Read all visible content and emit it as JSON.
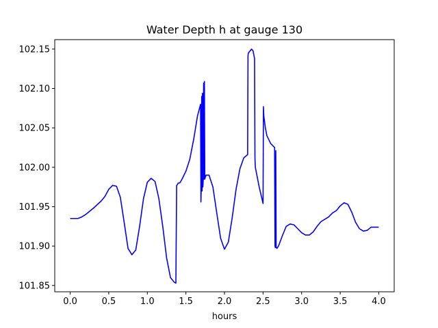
{
  "chart_data": {
    "type": "line",
    "title": "Water Depth h at gauge 130",
    "xlabel": "hours",
    "ylabel": "",
    "xlim": [
      -0.2,
      4.2
    ],
    "ylim": [
      101.842,
      102.162
    ],
    "xticks": [
      0.0,
      0.5,
      1.0,
      1.5,
      2.0,
      2.5,
      3.0,
      3.5,
      4.0
    ],
    "xtick_labels": [
      "0.0",
      "0.5",
      "1.0",
      "1.5",
      "2.0",
      "2.5",
      "3.0",
      "3.5",
      "4.0"
    ],
    "yticks": [
      101.85,
      101.9,
      101.95,
      102.0,
      102.05,
      102.1,
      102.15
    ],
    "ytick_labels": [
      "101.85",
      "101.90",
      "101.95",
      "102.00",
      "102.05",
      "102.10",
      "102.15"
    ],
    "grid": false,
    "series": [
      {
        "color": "#0000ff",
        "x": [
          0.0,
          0.1,
          0.15,
          0.2,
          0.3,
          0.4,
          0.45,
          0.5,
          0.55,
          0.6,
          0.65,
          0.7,
          0.75,
          0.8,
          0.85,
          0.9,
          0.95,
          1.0,
          1.05,
          1.1,
          1.15,
          1.2,
          1.25,
          1.3,
          1.35,
          1.37,
          1.38,
          1.39,
          1.4,
          1.42,
          1.45,
          1.5,
          1.55,
          1.6,
          1.65,
          1.69,
          1.695,
          1.7,
          1.705,
          1.71,
          1.715,
          1.72,
          1.725,
          1.73,
          1.735,
          1.74,
          1.745,
          1.75,
          1.755,
          1.76,
          1.8,
          1.85,
          1.9,
          1.95,
          2.0,
          2.05,
          2.1,
          2.15,
          2.2,
          2.25,
          2.3,
          2.305,
          2.31,
          2.35,
          2.37,
          2.39,
          2.395,
          2.4,
          2.45,
          2.5,
          2.505,
          2.51,
          2.53,
          2.55,
          2.6,
          2.65,
          2.655,
          2.66,
          2.665,
          2.67,
          2.675,
          2.68,
          2.7,
          2.75,
          2.8,
          2.85,
          2.9,
          2.95,
          3.0,
          3.05,
          3.1,
          3.15,
          3.2,
          3.25,
          3.3,
          3.35,
          3.4,
          3.45,
          3.5,
          3.55,
          3.6,
          3.65,
          3.7,
          3.75,
          3.8,
          3.85,
          3.9,
          3.95,
          4.0
        ],
        "y": [
          101.935,
          101.935,
          101.937,
          101.94,
          101.948,
          101.957,
          101.963,
          101.972,
          101.977,
          101.976,
          101.962,
          101.93,
          101.897,
          101.889,
          101.895,
          101.925,
          101.96,
          101.981,
          101.986,
          101.982,
          101.96,
          101.925,
          101.885,
          101.86,
          101.854,
          101.853,
          101.977,
          101.978,
          101.98,
          101.98,
          101.985,
          101.995,
          102.01,
          102.035,
          102.065,
          102.08,
          101.956,
          101.98,
          102.09,
          101.97,
          102.094,
          101.975,
          101.985,
          102.107,
          101.985,
          102.109,
          101.985,
          101.987,
          101.988,
          101.99,
          101.99,
          101.975,
          101.942,
          101.91,
          101.896,
          101.905,
          101.936,
          101.972,
          101.998,
          102.012,
          102.016,
          102.142,
          102.145,
          102.15,
          102.148,
          102.138,
          102.012,
          102.0,
          101.975,
          101.954,
          102.077,
          102.065,
          102.05,
          102.04,
          102.03,
          102.025,
          101.9,
          101.898,
          102.021,
          101.898,
          101.898,
          101.897,
          101.9,
          101.913,
          101.925,
          101.928,
          101.927,
          101.922,
          101.917,
          101.914,
          101.914,
          101.918,
          101.925,
          101.931,
          101.934,
          101.937,
          101.942,
          101.945,
          101.951,
          101.955,
          101.953,
          101.943,
          101.93,
          101.922,
          101.919,
          101.92,
          101.924,
          101.924,
          101.924
        ]
      }
    ]
  }
}
